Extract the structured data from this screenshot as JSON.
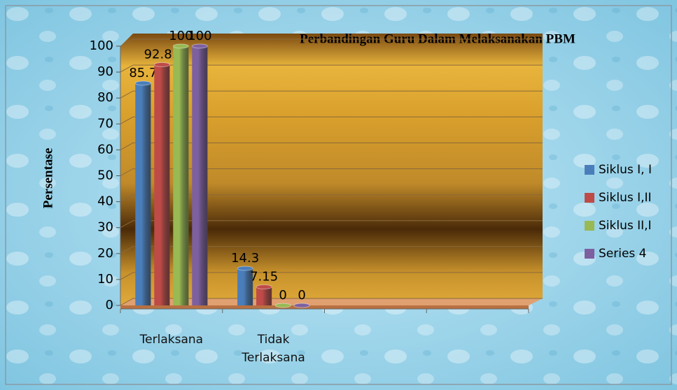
{
  "chart_data": {
    "type": "bar",
    "title": "Perbandingan Guru  Dalam Melaksanakan PBM",
    "y_label": "Persentase",
    "categories": [
      "Terlaksana",
      "Tidak Terlaksana",
      null,
      null
    ],
    "series": [
      {
        "name": "Siklus I, I",
        "color": "#4a7ebb",
        "values": [
          85.7,
          14.3,
          null,
          null
        ]
      },
      {
        "name": "Siklus I,II",
        "color": "#be4b48",
        "values": [
          92.85,
          7.15,
          null,
          null
        ]
      },
      {
        "name": "Siklus II,I",
        "color": "#98b954",
        "values": [
          100,
          0,
          null,
          null
        ]
      },
      {
        "name": "Series 4",
        "color": "#7d60a0",
        "values": [
          100,
          0,
          null,
          null
        ]
      }
    ],
    "ylim": [
      0,
      100
    ],
    "yticks": [
      0,
      10,
      20,
      30,
      40,
      50,
      60,
      70,
      80,
      90,
      100
    ],
    "grid": true,
    "legend": "right"
  }
}
